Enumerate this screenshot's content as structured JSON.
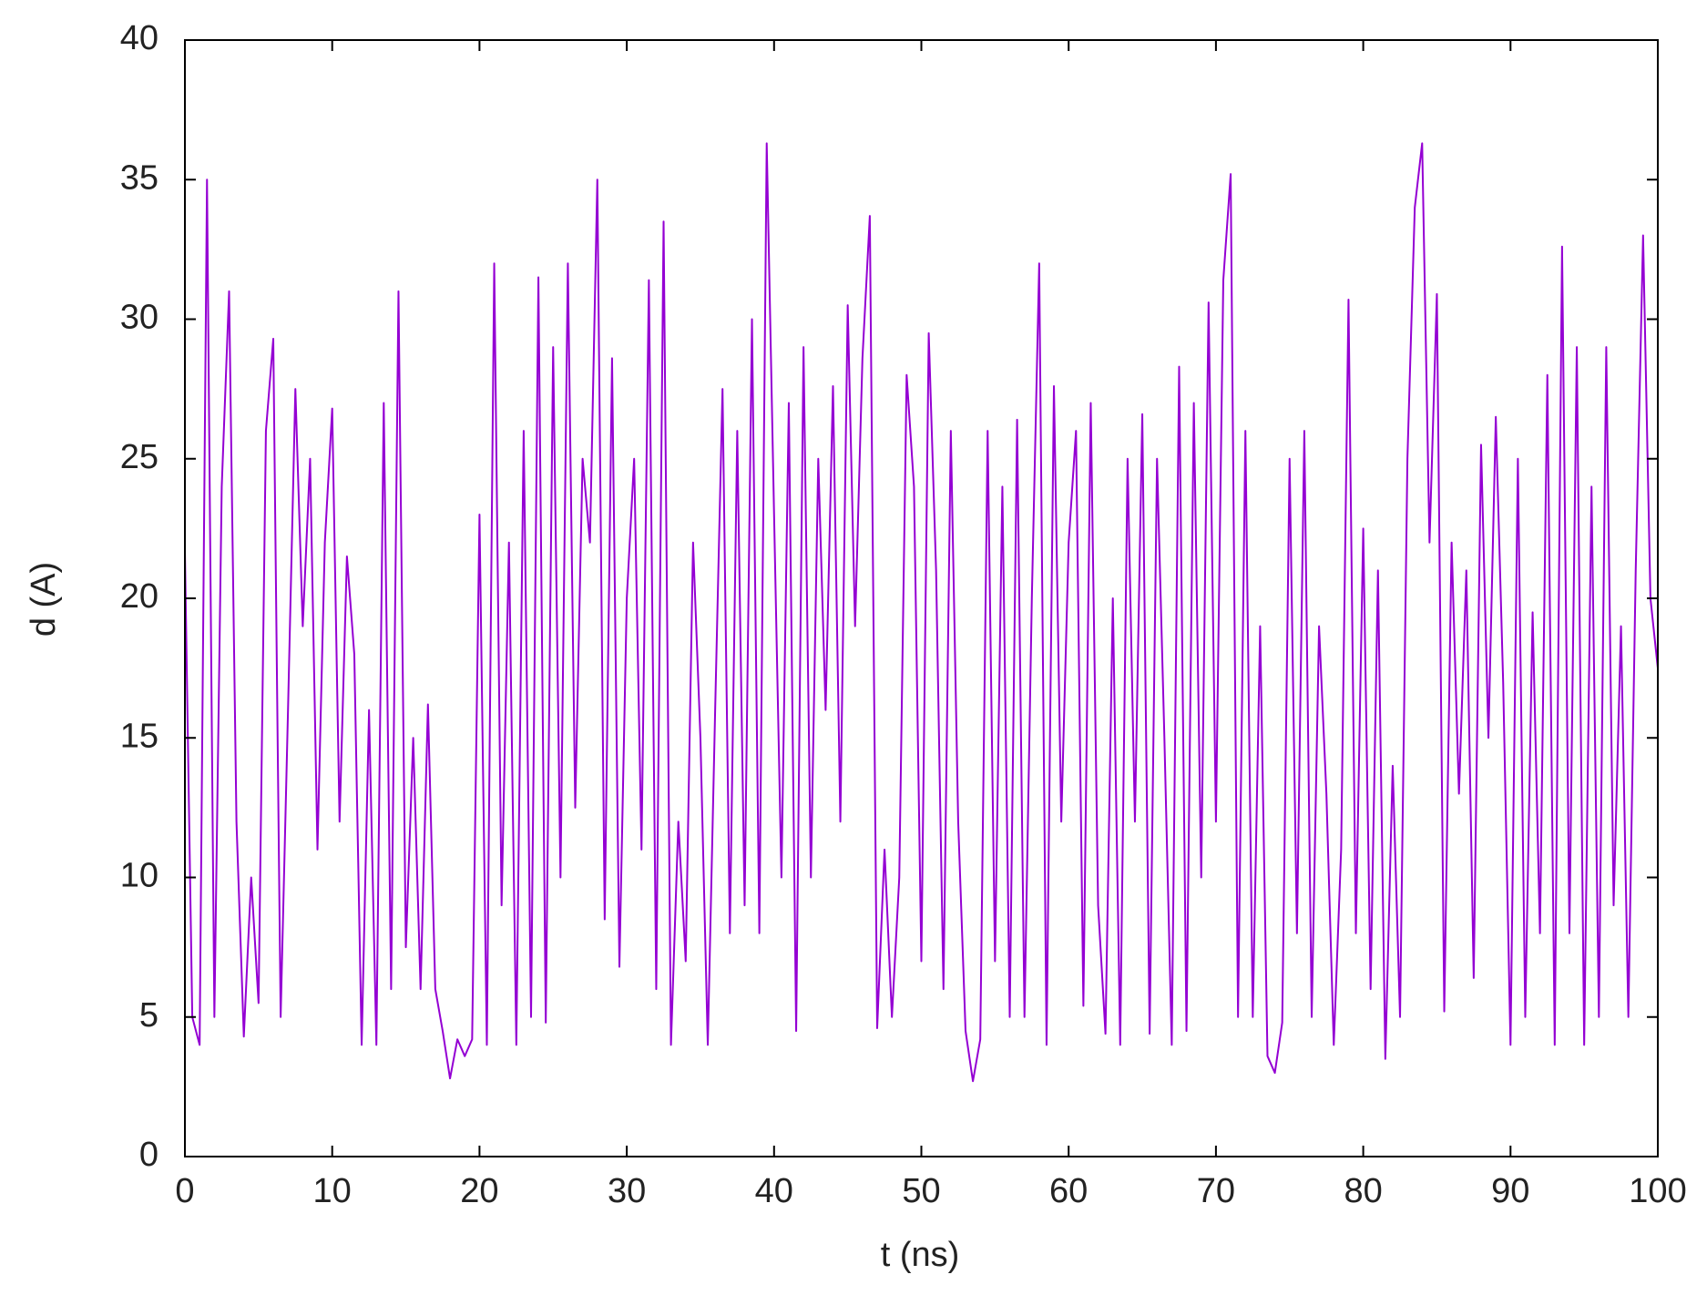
{
  "chart_data": {
    "type": "line",
    "x_label": "t (ns)",
    "y_label": "d (A)",
    "color": "#9400d3",
    "xlim": [
      0,
      100
    ],
    "xticks": [
      0,
      10,
      20,
      30,
      40,
      50,
      60,
      70,
      80,
      90,
      100
    ],
    "ylim": [
      0,
      40
    ],
    "yticks": [
      0,
      5,
      10,
      15,
      20,
      25,
      30,
      35,
      40
    ],
    "x": [
      0,
      0.5,
      1,
      1.5,
      2,
      2.5,
      3,
      3.5,
      4,
      4.5,
      5,
      5.5,
      6,
      6.5,
      7,
      7.5,
      8,
      8.5,
      9,
      9.5,
      10,
      10.5,
      11,
      11.5,
      12,
      12.5,
      13,
      13.5,
      14,
      14.5,
      15,
      15.5,
      16,
      16.5,
      17,
      17.5,
      18,
      18.5,
      19,
      19.5,
      20,
      20.5,
      21,
      21.5,
      22,
      22.5,
      23,
      23.5,
      24,
      24.5,
      25,
      25.5,
      26,
      26.5,
      27,
      27.5,
      28,
      28.5,
      29,
      29.5,
      30,
      30.5,
      31,
      31.5,
      32,
      32.5,
      33,
      33.5,
      34,
      34.5,
      35,
      35.5,
      36,
      36.5,
      37,
      37.5,
      38,
      38.5,
      39,
      39.5,
      40,
      40.5,
      41,
      41.5,
      42,
      42.5,
      43,
      43.5,
      44,
      44.5,
      45,
      45.5,
      46,
      46.5,
      47,
      47.5,
      48,
      48.5,
      49,
      49.5,
      50,
      50.5,
      51,
      51.5,
      52,
      52.5,
      53,
      53.5,
      54,
      54.5,
      55,
      55.5,
      56,
      56.5,
      57,
      57.5,
      58,
      58.5,
      59,
      59.5,
      60,
      60.5,
      61,
      61.5,
      62,
      62.5,
      63,
      63.5,
      64,
      64.5,
      65,
      65.5,
      66,
      66.5,
      67,
      67.5,
      68,
      68.5,
      69,
      69.5,
      70,
      70.5,
      71,
      71.5,
      72,
      72.5,
      73,
      73.5,
      74,
      74.5,
      75,
      75.5,
      76,
      76.5,
      77,
      77.5,
      78,
      78.5,
      79,
      79.5,
      80,
      80.5,
      81,
      81.5,
      82,
      82.5,
      83,
      83.5,
      84,
      84.5,
      85,
      85.5,
      86,
      86.5,
      87,
      87.5,
      88,
      88.5,
      89,
      89.5,
      90,
      90.5,
      91,
      91.5,
      92,
      92.5,
      93,
      93.5,
      94,
      94.5,
      95,
      95.5,
      96,
      96.5,
      97,
      97.5,
      98,
      98.5,
      99,
      99.5,
      100
    ],
    "values": [
      21.7,
      5,
      4,
      35,
      5,
      24,
      31,
      12,
      4.3,
      10,
      5.5,
      26,
      29.3,
      5,
      16,
      27.5,
      19,
      25,
      11,
      22,
      26.8,
      12,
      21.5,
      18,
      4,
      16,
      4,
      27,
      6,
      31,
      7.5,
      15,
      6,
      16.2,
      6,
      4.5,
      2.8,
      4.2,
      3.6,
      4.2,
      23,
      4,
      32,
      9,
      22,
      4,
      26,
      5,
      31.5,
      4.8,
      29,
      10,
      32,
      12.5,
      25,
      22,
      35,
      8.5,
      28.6,
      6.8,
      20,
      25,
      11,
      31.4,
      6,
      33.5,
      4,
      12,
      7,
      22,
      15,
      4,
      16,
      27.5,
      8,
      26,
      9,
      30,
      8,
      36.3,
      23,
      10,
      27,
      4.5,
      29,
      10,
      25,
      16,
      27.6,
      12,
      30.5,
      19,
      28.6,
      33.7,
      4.6,
      11,
      5,
      10,
      28,
      24,
      7,
      29.5,
      21,
      6,
      26,
      12,
      4.5,
      2.7,
      4.2,
      26,
      7,
      24,
      5,
      26.4,
      5,
      20,
      32,
      4,
      27.6,
      12,
      22,
      26,
      5.4,
      27,
      9,
      4.4,
      20,
      4,
      25,
      12,
      26.6,
      4.4,
      25,
      15,
      4,
      28.3,
      4.5,
      27,
      10,
      30.6,
      12,
      31.4,
      35.2,
      5,
      26,
      5,
      19,
      3.6,
      3,
      4.8,
      25,
      8,
      26,
      5,
      19,
      13,
      4,
      11,
      30.7,
      8,
      22.5,
      6,
      21,
      3.5,
      14,
      5,
      25,
      34,
      36.3,
      22,
      30.9,
      5.2,
      22,
      13,
      21,
      6.4,
      25.5,
      15,
      26.5,
      17,
      4,
      25,
      5,
      19.5,
      8,
      28,
      4,
      32.6,
      8,
      29,
      4,
      24,
      5,
      29,
      9,
      19,
      5,
      21,
      33,
      20,
      17.5
    ]
  }
}
